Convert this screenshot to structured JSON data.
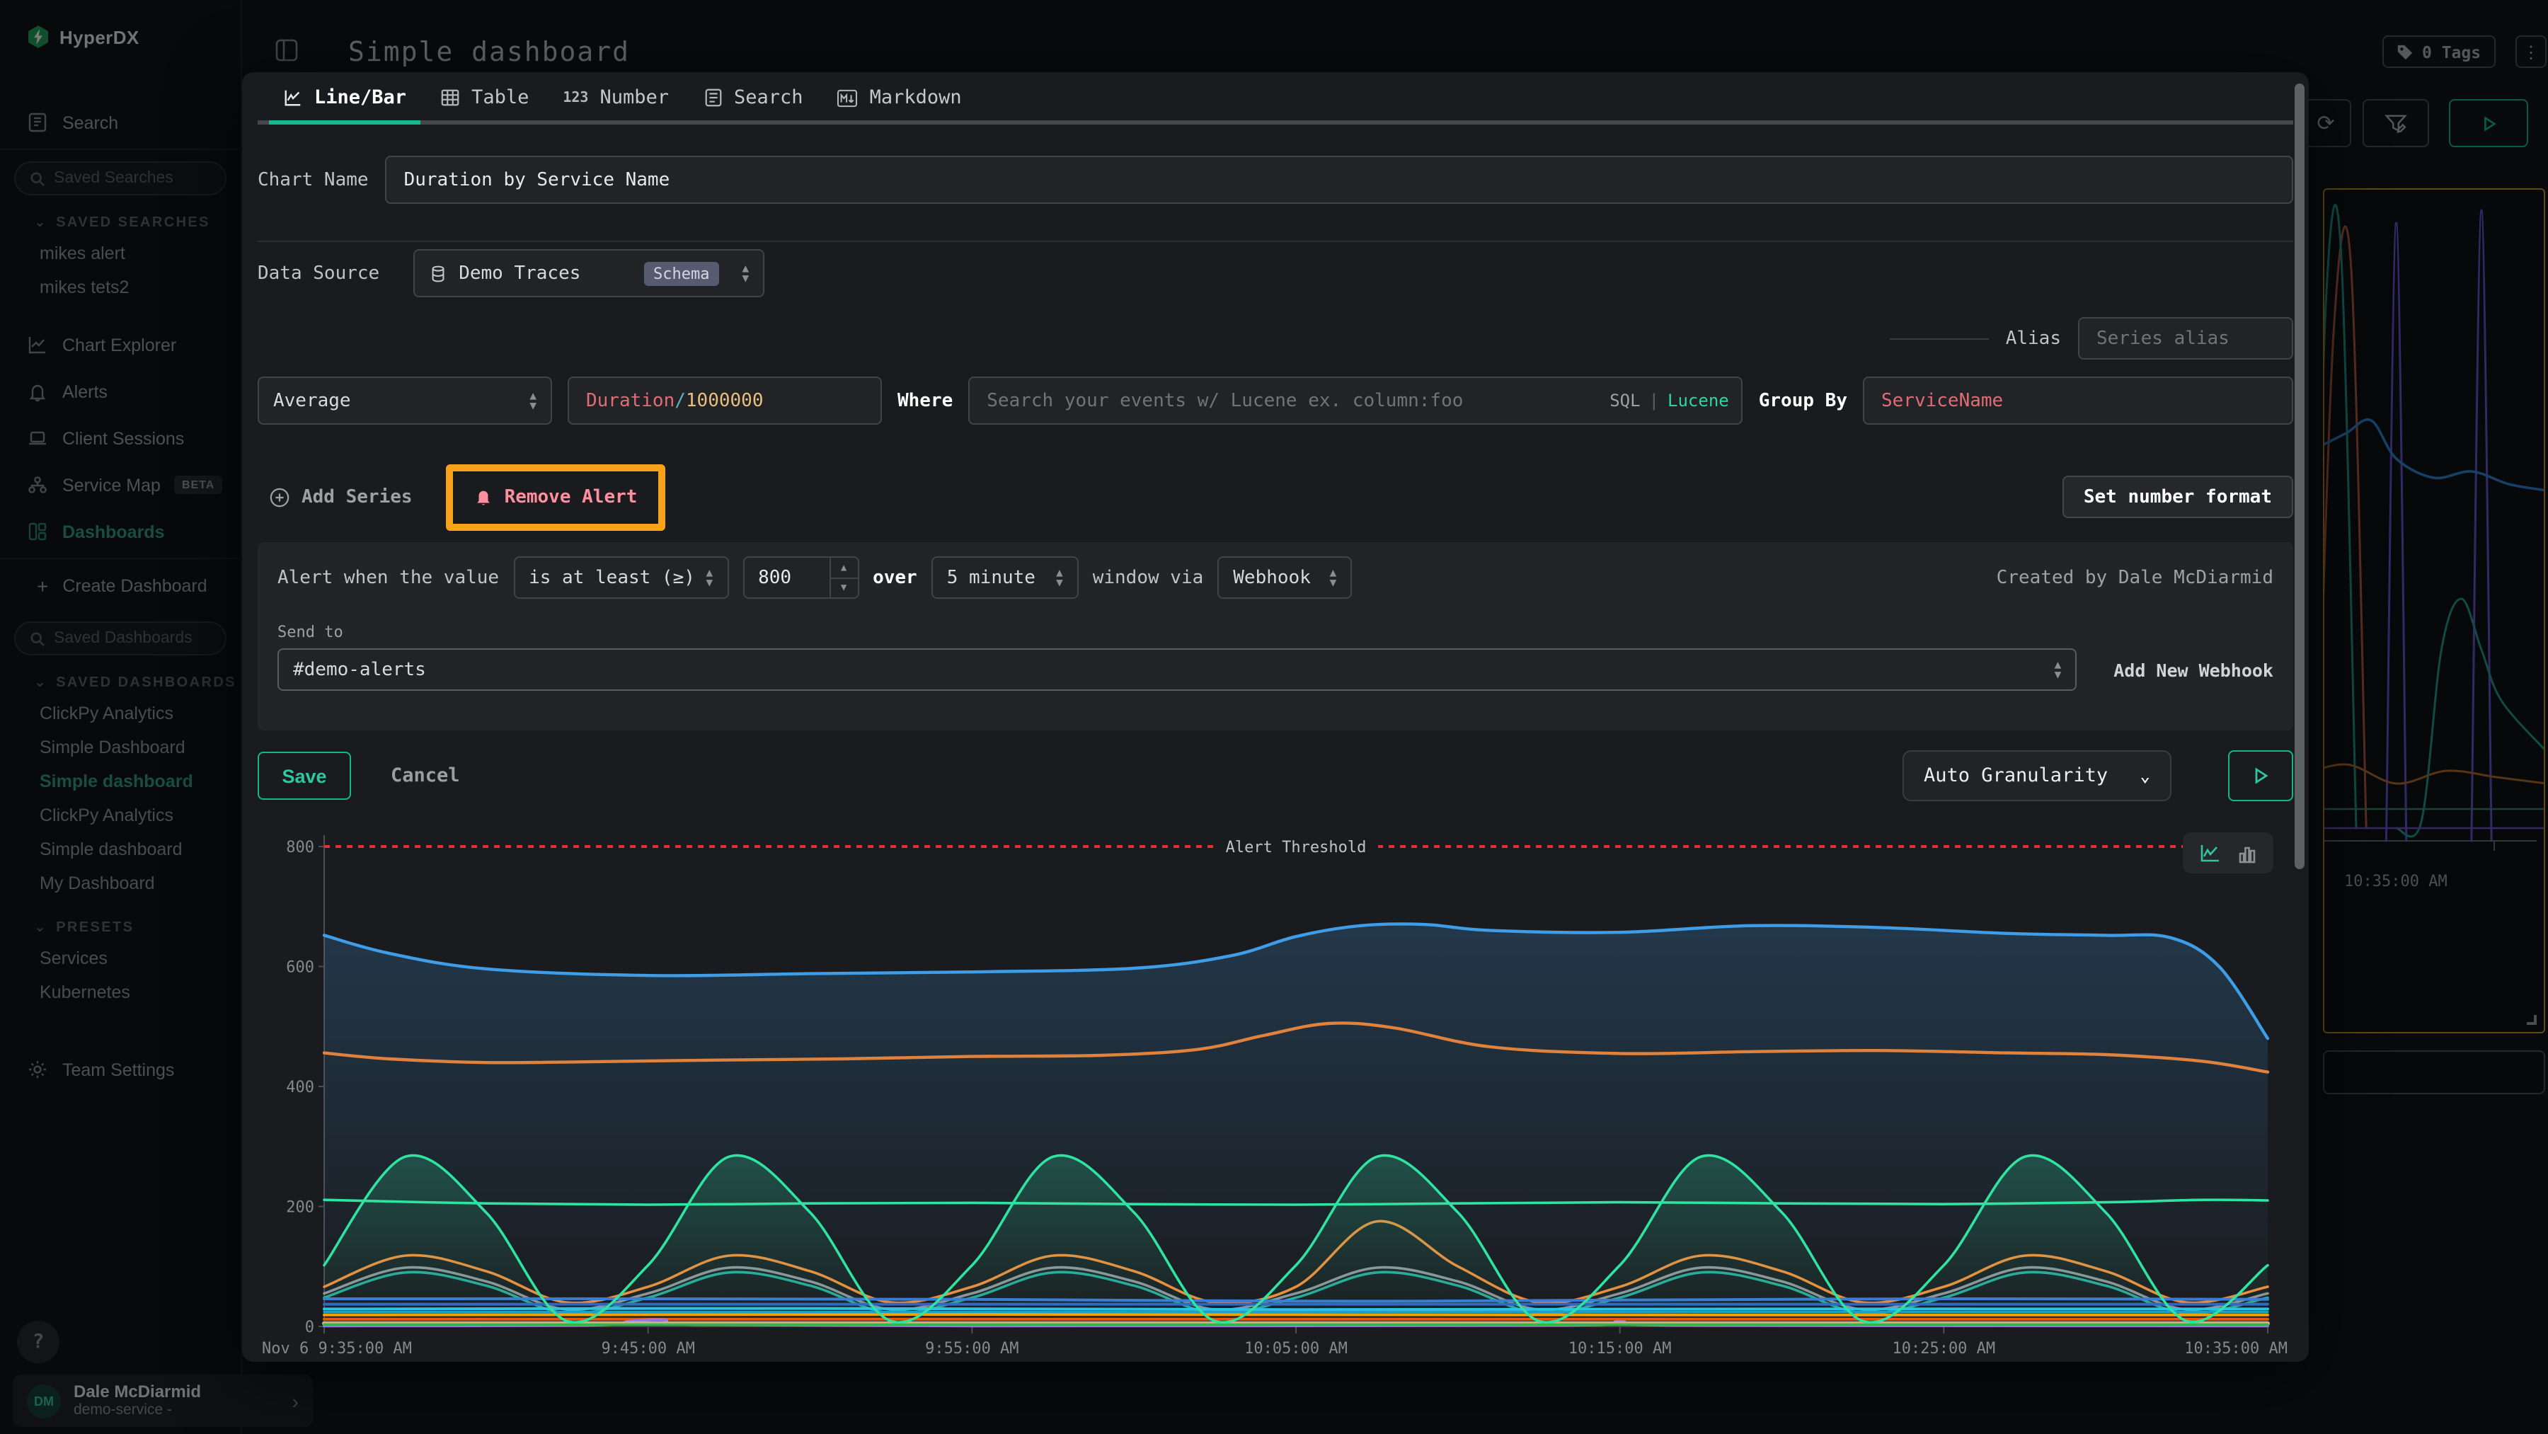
{
  "app": {
    "brand": "HyperDX",
    "page_title": "Simple dashboard"
  },
  "topbar": {
    "tags_label": "0 Tags",
    "kebab": "⋮",
    "refresh_icon": "⟳"
  },
  "sidebar": {
    "nav_search": "Search",
    "saved_searches": {
      "placeholder": "Saved Searches",
      "header": "SAVED SEARCHES",
      "items": [
        "mikes alert",
        "mikes tets2"
      ]
    },
    "nav": {
      "chart_explorer": "Chart Explorer",
      "alerts": "Alerts",
      "client_sessions": "Client Sessions",
      "service_map": "Service Map",
      "service_map_badge": "BETA",
      "dashboards": "Dashboards"
    },
    "create_dashboard": "Create Dashboard",
    "saved_dashboards": {
      "placeholder": "Saved Dashboards",
      "header": "SAVED DASHBOARDS",
      "items": [
        "ClickPy Analytics",
        "Simple Dashboard",
        "Simple dashboard",
        "ClickPy Analytics",
        "Simple dashboard",
        "My Dashboard"
      ]
    },
    "presets": {
      "header": "PRESETS",
      "items": [
        "Services",
        "Kubernetes"
      ]
    },
    "team_settings": "Team Settings",
    "help": "?",
    "user": {
      "initials": "DM",
      "name": "Dale McDiarmid",
      "subtitle": "demo-service -",
      "chevron": "›"
    }
  },
  "editor": {
    "tabs": [
      {
        "label": "Line/Bar",
        "active": true
      },
      {
        "label": "Table"
      },
      {
        "label": "Number",
        "icon_text": "123"
      },
      {
        "label": "Search"
      },
      {
        "label": "Markdown"
      }
    ],
    "chart_name": {
      "label": "Chart Name",
      "value": "Duration by Service Name"
    },
    "data_source": {
      "label": "Data Source",
      "value": "Demo Traces",
      "badge": "Schema"
    },
    "alias": {
      "label": "Alias",
      "placeholder": "Series alias"
    },
    "series_row": {
      "aggregation": "Average",
      "field_parts": {
        "a": "Duration",
        "b": "/",
        "c": "1000000"
      },
      "where_label": "Where",
      "where_placeholder": "Search your events w/ Lucene ex. column:foo",
      "sql_label": "SQL",
      "lang_sep": "|",
      "lucene_label": "Lucene",
      "group_by_label": "Group By",
      "group_by_value": "ServiceName"
    },
    "actions": {
      "add_series": "Add Series",
      "remove_alert": "Remove Alert",
      "set_number_format": "Set number format"
    },
    "alert": {
      "prefix": "Alert when the value",
      "condition": "is at least (≥)",
      "threshold": "800",
      "over_label": "over",
      "window": "5 minute",
      "via_label": "window via",
      "channel": "Webhook",
      "created_by": "Created by Dale McDiarmid",
      "send_to_label": "Send to",
      "send_to_value": "#demo-alerts",
      "add_webhook": "Add New Webhook"
    },
    "footer": {
      "save": "Save",
      "cancel": "Cancel",
      "granularity": "Auto Granularity"
    }
  },
  "chart_data": {
    "type": "line",
    "title": "",
    "xlabel": "",
    "ylabel": "",
    "xlim": [
      0,
      60
    ],
    "ylim": [
      0,
      800
    ],
    "grid": false,
    "legend": "none",
    "yticks": [
      0,
      200,
      400,
      600,
      800
    ],
    "xticks": {
      "t": [
        0,
        10,
        20,
        30,
        40,
        50,
        60
      ],
      "labels": [
        "Nov 6 9:35:00 AM",
        "9:45:00 AM",
        "9:55:00 AM",
        "10:05:00 AM",
        "10:15:00 AM",
        "10:25:00 AM",
        "10:35:00 AM"
      ]
    },
    "threshold": {
      "value": 800,
      "label": "Alert Threshold",
      "color": "#e03131"
    },
    "series": [
      {
        "name": "blue-top",
        "color": "#3e9de6",
        "width": 2.2,
        "fill": true,
        "x": [
          0,
          2,
          5,
          10,
          15,
          20,
          25,
          28,
          30,
          32,
          34,
          36,
          40,
          44,
          48,
          52,
          55,
          57,
          58.5,
          60
        ],
        "y": [
          652,
          622,
          596,
          585,
          588,
          591,
          597,
          618,
          650,
          668,
          670,
          660,
          657,
          668,
          665,
          655,
          652,
          648,
          600,
          480
        ]
      },
      {
        "name": "orange-top",
        "color": "#e0813c",
        "width": 2.2,
        "x": [
          0,
          2,
          5,
          8,
          12,
          16,
          20,
          24,
          27,
          29,
          31,
          33,
          36,
          40,
          44,
          48,
          52,
          55,
          58,
          60
        ],
        "y": [
          456,
          446,
          440,
          441,
          444,
          446,
          450,
          452,
          462,
          485,
          505,
          498,
          466,
          455,
          458,
          460,
          456,
          453,
          442,
          424
        ]
      },
      {
        "name": "green-flat-200",
        "color": "#2fe3a0",
        "width": 1.8,
        "x": [
          0,
          5,
          10,
          15,
          20,
          25,
          30,
          35,
          40,
          45,
          50,
          55,
          58,
          60
        ],
        "y": [
          211,
          205,
          203,
          205,
          206,
          204,
          203,
          205,
          207,
          205,
          204,
          207,
          211,
          210
        ]
      },
      {
        "name": "orange-wave",
        "color": "#ef8c3a",
        "width": 1.8,
        "x": [
          0,
          2.5,
          5,
          7.5,
          10,
          12.5,
          15,
          17.5,
          20,
          22.5,
          25,
          27.5,
          30,
          32.5,
          35,
          37.5,
          40,
          42.5,
          45,
          47.5,
          50,
          52.5,
          55,
          57.5,
          60
        ],
        "y": [
          66,
          118,
          92,
          40,
          66,
          118,
          92,
          40,
          66,
          118,
          92,
          40,
          66,
          175,
          100,
          40,
          66,
          118,
          92,
          40,
          66,
          118,
          92,
          40,
          66
        ]
      },
      {
        "name": "gray-wave",
        "color": "#8f9398",
        "width": 1.8,
        "x": [
          0,
          2.5,
          5,
          7.5,
          10,
          12.5,
          15,
          17.5,
          20,
          22.5,
          25,
          27.5,
          30,
          32.5,
          35,
          37.5,
          40,
          42.5,
          45,
          47.5,
          50,
          52.5,
          55,
          57.5,
          60
        ],
        "y": [
          55,
          98,
          75,
          28,
          55,
          98,
          75,
          28,
          55,
          98,
          75,
          28,
          55,
          98,
          75,
          28,
          55,
          98,
          75,
          28,
          55,
          98,
          75,
          28,
          55
        ]
      },
      {
        "name": "teal-wave",
        "color": "#2aa898",
        "width": 1.8,
        "x": [
          0,
          2.5,
          5,
          7.5,
          10,
          12.5,
          15,
          17.5,
          20,
          22.5,
          25,
          27.5,
          30,
          32.5,
          35,
          37.5,
          40,
          42.5,
          45,
          47.5,
          50,
          52.5,
          55,
          57.5,
          60
        ],
        "y": [
          48,
          90,
          68,
          22,
          48,
          90,
          68,
          22,
          48,
          90,
          68,
          22,
          48,
          90,
          68,
          22,
          48,
          90,
          68,
          22,
          48,
          90,
          68,
          22,
          48
        ]
      },
      {
        "name": "flat-blue-46",
        "color": "#3a7bd5",
        "width": 2,
        "x": [
          0,
          10,
          20,
          27,
          33,
          40,
          50,
          60
        ],
        "y": [
          46,
          46,
          45,
          43,
          42,
          44,
          46,
          45
        ]
      },
      {
        "name": "flat-blue-37",
        "color": "#2f66c4",
        "width": 2,
        "x": [
          0,
          60
        ],
        "y": [
          37,
          37
        ]
      },
      {
        "name": "flat-cyan-29",
        "color": "#29c3e6",
        "width": 2,
        "x": [
          0,
          15,
          30,
          45,
          60
        ],
        "y": [
          29,
          30,
          28,
          29,
          29
        ]
      },
      {
        "name": "flat-cyan-24",
        "color": "#1f9fc9",
        "width": 1.6,
        "x": [
          0,
          60
        ],
        "y": [
          24,
          24
        ]
      },
      {
        "name": "flat-amber-19",
        "color": "#f0a202",
        "width": 2,
        "x": [
          0,
          20,
          40,
          60
        ],
        "y": [
          19,
          20,
          19,
          19
        ]
      },
      {
        "name": "flat-red-12",
        "color": "#e8590c",
        "width": 2,
        "x": [
          0,
          60
        ],
        "y": [
          12,
          12
        ]
      },
      {
        "name": "purple-low",
        "color": "#9775fa",
        "width": 2,
        "x": [
          0,
          8,
          9.5,
          10.5,
          11.5,
          20,
          38,
          40,
          42,
          60
        ],
        "y": [
          1,
          2,
          9,
          11,
          3,
          1,
          2,
          8,
          2,
          1
        ]
      },
      {
        "name": "flat-tan-5",
        "color": "#d3b07c",
        "width": 3,
        "x": [
          0,
          60
        ],
        "y": [
          5,
          5
        ]
      },
      {
        "name": "flat-green-3",
        "color": "#37b24d",
        "width": 1.6,
        "x": [
          0,
          60
        ],
        "y": [
          3,
          3
        ]
      },
      {
        "name": "green-wave",
        "color": "#2fe3a0",
        "width": 1.8,
        "fill": true,
        "x": [
          0,
          2.5,
          5,
          7.5,
          10,
          12.5,
          15,
          17.5,
          20,
          22.5,
          25,
          27.5,
          30,
          32.5,
          35,
          37.5,
          40,
          42.5,
          45,
          47.5,
          50,
          52.5,
          55,
          57.5,
          60
        ],
        "y": [
          102,
          283,
          190,
          9,
          102,
          283,
          190,
          9,
          102,
          283,
          190,
          9,
          102,
          283,
          190,
          9,
          102,
          283,
          190,
          9,
          102,
          283,
          190,
          9,
          102
        ]
      }
    ]
  },
  "background": {
    "mini_chart": {
      "time_label": "10:35:00 AM",
      "xlim": [
        0,
        100
      ],
      "ylim": [
        0,
        100
      ],
      "series": [
        {
          "color": "#6a4fd0",
          "width": 1.5,
          "x": [
            36,
            40,
            44
          ],
          "y": [
            0,
            97,
            0
          ]
        },
        {
          "color": "#6a4fd0",
          "width": 1.5,
          "x": [
            70,
            74,
            78
          ],
          "y": [
            0,
            99,
            0
          ]
        },
        {
          "color": "#b55a3c",
          "width": 1.5,
          "x": [
            8,
            15,
            22,
            28
          ],
          "y": [
            2,
            80,
            90,
            2
          ]
        },
        {
          "color": "#2a7fd0",
          "width": 1.8,
          "x": [
            0,
            10,
            20,
            30,
            40,
            55,
            70,
            85,
            100
          ],
          "y": [
            60,
            62,
            64,
            66,
            60,
            57,
            58,
            56,
            55
          ]
        },
        {
          "color": "#1f9688",
          "width": 1.5,
          "x": [
            6,
            12,
            18,
            24
          ],
          "y": [
            2,
            85,
            92,
            2
          ]
        },
        {
          "color": "#1f9688",
          "width": 1.5,
          "x": [
            40,
            50,
            58,
            66,
            74,
            82,
            100
          ],
          "y": [
            2,
            3,
            30,
            38,
            30,
            22,
            14
          ]
        },
        {
          "color": "#b06a28",
          "width": 1.5,
          "x": [
            0,
            20,
            40,
            60,
            80,
            100
          ],
          "y": [
            10,
            12,
            9,
            11,
            10,
            9
          ]
        },
        {
          "color": "#2a8f6a",
          "width": 1.2,
          "x": [
            0,
            100
          ],
          "y": [
            5,
            5
          ]
        },
        {
          "color": "#6a4fd0",
          "width": 1.2,
          "x": [
            0,
            100
          ],
          "y": [
            2,
            2
          ]
        }
      ]
    }
  }
}
